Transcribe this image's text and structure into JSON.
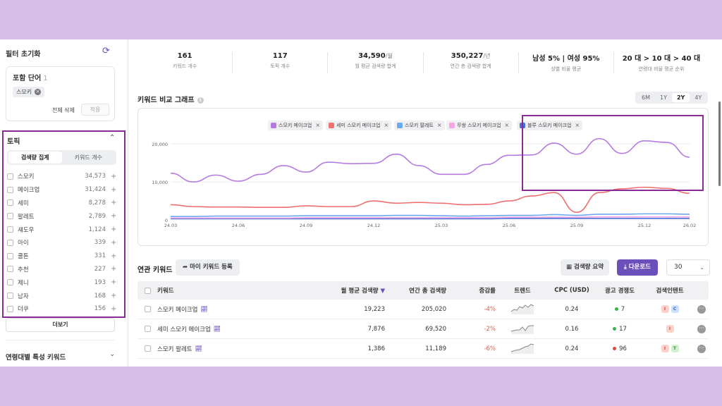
{
  "sidebar": {
    "reset_label": "필터 초기화",
    "include": {
      "title": "포함 단어",
      "count": "1",
      "chip": "스모키",
      "clear_all": "전체 삭제",
      "apply": "적용"
    },
    "topic": {
      "title": "토픽",
      "tabs": [
        "검색량 집계",
        "키워드 개수"
      ],
      "items": [
        {
          "label": "스모키",
          "count": "34,573"
        },
        {
          "label": "메이크업",
          "count": "31,424"
        },
        {
          "label": "세미",
          "count": "8,278"
        },
        {
          "label": "팔레트",
          "count": "2,789"
        },
        {
          "label": "섀도우",
          "count": "1,124"
        },
        {
          "label": "아이",
          "count": "339"
        },
        {
          "label": "쿨톤",
          "count": "331"
        },
        {
          "label": "추천",
          "count": "227"
        },
        {
          "label": "제니",
          "count": "193"
        },
        {
          "label": "남자",
          "count": "168"
        },
        {
          "label": "더쿠",
          "count": "156"
        }
      ]
    },
    "more_label": "더보기",
    "age_section": "연령대별 특성 키워드"
  },
  "stats": [
    {
      "value": "161",
      "unit": "",
      "label": "키워드 개수"
    },
    {
      "value": "117",
      "unit": "",
      "label": "토픽 개수"
    },
    {
      "value": "34,590",
      "unit": "/월",
      "label": "월 평균 검색량 합계"
    },
    {
      "value": "350,227",
      "unit": "/년",
      "label": "연간 총 검색량 합계"
    },
    {
      "value": "남성 5% | 여성 95%",
      "unit": "",
      "label": "성별 비율 평균"
    },
    {
      "value": "20 대 > 10 대 > 40 대",
      "unit": "",
      "label": "연령대 비율 평균 순위"
    }
  ],
  "graph": {
    "title": "키워드 비교 그래프",
    "ranges": [
      "6M",
      "1Y",
      "2Y",
      "4Y"
    ],
    "active_range": "2Y",
    "legend": [
      {
        "label": "스모키 메이크업",
        "color": "#b57be0"
      },
      {
        "label": "세미 스모키 메이크업",
        "color": "#f07070"
      },
      {
        "label": "스모키 팔레트",
        "color": "#6aa8f0"
      },
      {
        "label": "무쌍 스모키 메이크업",
        "color": "#f2a6e6"
      },
      {
        "label": "블루 스모키 메이크업",
        "color": "#4a6fd8"
      }
    ]
  },
  "chart_data": {
    "type": "line",
    "x": [
      "24.03",
      "24.04",
      "24.05",
      "24.06",
      "24.07",
      "24.08",
      "24.09",
      "24.10",
      "24.11",
      "24.12",
      "25.01",
      "25.02",
      "25.03",
      "25.04",
      "25.05",
      "25.06",
      "25.07",
      "25.08",
      "25.09",
      "25.10",
      "25.11",
      "25.12",
      "26.01",
      "26.02"
    ],
    "x_ticks": [
      "24.03",
      "24.06",
      "24.09",
      "24.12",
      "25.03",
      "25.06",
      "25.09",
      "25.12",
      "26.02"
    ],
    "y_ticks": [
      "0",
      "10,000",
      "20,000"
    ],
    "ylim": [
      0,
      23000
    ],
    "series": [
      {
        "name": "스모키 메이크업",
        "color": "#b57be0",
        "values": [
          12300,
          10000,
          11800,
          10200,
          12000,
          14300,
          12600,
          15200,
          14800,
          14900,
          17300,
          14300,
          12000,
          12000,
          14600,
          17000,
          17100,
          20200,
          17300,
          21400,
          17500,
          20800,
          20400,
          16500
        ]
      },
      {
        "name": "세미 스모키 메이크업",
        "color": "#f07070",
        "values": [
          4000,
          3500,
          3400,
          3400,
          3300,
          3300,
          3700,
          3500,
          3500,
          5000,
          4400,
          4600,
          4400,
          4000,
          4100,
          5000,
          6300,
          7200,
          2000,
          7200,
          8200,
          8600,
          8300,
          7000
        ]
      },
      {
        "name": "스모키 팔레트",
        "color": "#6aa8f0",
        "values": [
          900,
          900,
          1000,
          1000,
          1000,
          1000,
          1100,
          1100,
          1100,
          1100,
          1200,
          1200,
          1100,
          1000,
          1100,
          1200,
          1200,
          1400,
          1200,
          1500,
          1500,
          1600,
          1600,
          1500
        ]
      },
      {
        "name": "무쌍 스모키 메이크업",
        "color": "#f2a6e6",
        "values": [
          500,
          500,
          500,
          500,
          500,
          500,
          600,
          600,
          600,
          600,
          600,
          600,
          600,
          600,
          600,
          700,
          700,
          700,
          700,
          800,
          800,
          800,
          800,
          800
        ]
      },
      {
        "name": "블루 스모키 메이크업",
        "color": "#4a6fd8",
        "values": [
          300,
          300,
          300,
          300,
          300,
          300,
          300,
          300,
          300,
          300,
          300,
          300,
          300,
          300,
          300,
          400,
          400,
          400,
          400,
          400,
          400,
          400,
          400,
          400
        ]
      }
    ]
  },
  "related": {
    "title": "연관 키워드",
    "my_keyword_btn": "마이 키워드 등록",
    "summary_btn": "검색량 요약",
    "download_btn": "다운로드",
    "page_size": "30",
    "headers": [
      "키워드",
      "월 평균 검색량",
      "연간 총 검색량",
      "증감률",
      "트렌드",
      "CPC (USD)",
      "광고 경쟁도",
      "검색인텐트"
    ],
    "rows": [
      {
        "keyword": "스모키 메이크업",
        "monthly": "19,223",
        "yearly": "205,020",
        "change": "-4%",
        "cpc": "0.24",
        "comp": "7",
        "comp_color": "#3bb54a",
        "intents": [
          {
            "t": "I",
            "bg": "#fbd3cd",
            "fg": "#d9534f"
          },
          {
            "t": "C",
            "bg": "#cfe0fb",
            "fg": "#3b6fd8"
          }
        ]
      },
      {
        "keyword": "세미 스모키 메이크업",
        "monthly": "7,876",
        "yearly": "69,520",
        "change": "-2%",
        "cpc": "0.16",
        "comp": "17",
        "comp_color": "#3bb54a",
        "intents": [
          {
            "t": "I",
            "bg": "#fbd3cd",
            "fg": "#d9534f"
          }
        ]
      },
      {
        "keyword": "스모키 팔레트",
        "monthly": "1,386",
        "yearly": "11,189",
        "change": "-6%",
        "cpc": "0.24",
        "comp": "96",
        "comp_color": "#e0443a",
        "intents": [
          {
            "t": "I",
            "bg": "#fbd3cd",
            "fg": "#d9534f"
          },
          {
            "t": "T",
            "bg": "#d4f0d0",
            "fg": "#3b9a3b"
          }
        ]
      }
    ]
  },
  "icons": {
    "reset": "refresh-icon",
    "trend": "trend-chart-icon",
    "download": "download-icon",
    "share": "share-arrow-icon"
  }
}
